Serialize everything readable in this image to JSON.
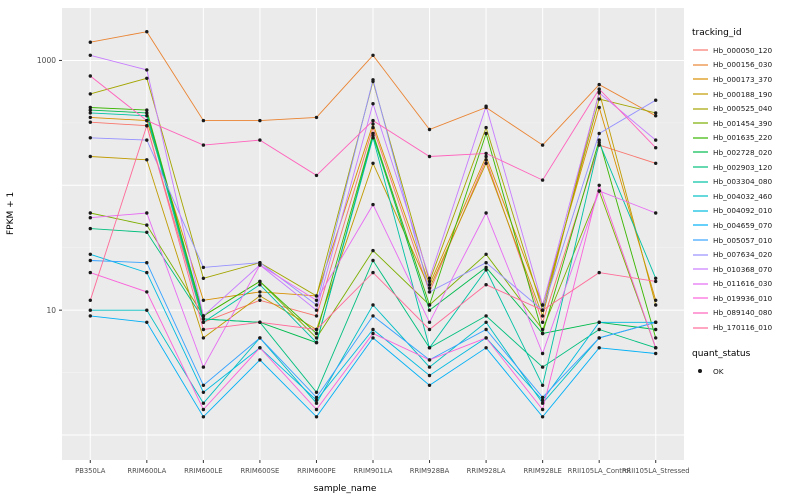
{
  "labels": {
    "xlabel": "sample_name",
    "ylabel": "FPKM + 1",
    "legend_title": "tracking_id",
    "quant_legend_title": "quant_status",
    "quant_legend_item": "OK"
  },
  "style": {
    "panel_bg": "#EBEBEB",
    "grid_major": "#FFFFFF",
    "grid_minor": "#F5F5F5",
    "point_color": "#1a1a1a",
    "axis_text": "#4d4d4d"
  },
  "chart_data": {
    "type": "line",
    "yscale": "log10",
    "grid": true,
    "legend_position": "right",
    "xlabel": "sample_name",
    "ylabel": "FPKM + 1",
    "ylim": [
      0.66,
      2500
    ],
    "y_ticks": [
      {
        "label": "10",
        "value": 10
      },
      {
        "label": "1000",
        "value": 1000
      }
    ],
    "x": [
      "PB350LA",
      "RRIM600LA",
      "RRIM600LE",
      "RRIM600SE",
      "RRIM600PE",
      "RRIM901LA",
      "RRIM928BA",
      "RRIM928LA",
      "RRIM928LE",
      "RRII105LA_Control",
      "RRII105LA_Stressed"
    ],
    "quant_status": "OK",
    "series": [
      {
        "name": "Hb_000050_120",
        "color": "#F8766D",
        "values": [
          320,
          300,
          8,
          12,
          9,
          290,
          14,
          160,
          8,
          210,
          150
        ]
      },
      {
        "name": "Hb_000156_030",
        "color": "#EA8331",
        "values": [
          1400,
          1700,
          330,
          330,
          350,
          1100,
          280,
          420,
          210,
          640,
          360
        ]
      },
      {
        "name": "Hb_000173_370",
        "color": "#D89000",
        "values": [
          350,
          330,
          12,
          14,
          13,
          310,
          16,
          170,
          11,
          420,
          12
        ]
      },
      {
        "name": "Hb_000188_190",
        "color": "#C09B00",
        "values": [
          170,
          160,
          6,
          13,
          7,
          150,
          15,
          150,
          9,
          560,
          11
        ]
      },
      {
        "name": "Hb_000525_040",
        "color": "#A3A500",
        "values": [
          540,
          720,
          18,
          24,
          13,
          680,
          17,
          290,
          10,
          490,
          380
        ]
      },
      {
        "name": "Hb_001454_390",
        "color": "#7CAE00",
        "values": [
          60,
          48,
          9,
          17,
          6,
          30,
          11,
          28,
          7,
          90,
          5
        ]
      },
      {
        "name": "Hb_001635_220",
        "color": "#39B600",
        "values": [
          420,
          400,
          9,
          17,
          6.5,
          260,
          11,
          260,
          6.5,
          230,
          6
        ]
      },
      {
        "name": "Hb_002728_020",
        "color": "#00BB4E",
        "values": [
          400,
          380,
          8.5,
          8,
          5.5,
          250,
          10,
          22,
          6.5,
          8,
          7
        ]
      },
      {
        "name": "Hb_002903_120",
        "color": "#00BF7D",
        "values": [
          45,
          42,
          8.5,
          8,
          2.2,
          25,
          5,
          9,
          3.5,
          7,
          5
        ]
      },
      {
        "name": "Hb_003304_080",
        "color": "#00C1A3",
        "values": [
          380,
          360,
          8,
          16,
          5.5,
          240,
          5,
          21,
          2.5,
          220,
          18
        ]
      },
      {
        "name": "Hb_004032_460",
        "color": "#00BFC4",
        "values": [
          10,
          10,
          1.8,
          6,
          1.8,
          11,
          3.5,
          8,
          1.8,
          6,
          8
        ]
      },
      {
        "name": "Hb_004092_010",
        "color": "#00BAE0",
        "values": [
          28,
          20,
          2.2,
          5,
          1.9,
          7,
          3,
          6,
          1.9,
          8,
          8
        ]
      },
      {
        "name": "Hb_004659_070",
        "color": "#00B0F6",
        "values": [
          9,
          8,
          1.4,
          4,
          1.4,
          6,
          2.5,
          5,
          1.4,
          5,
          4.5
        ]
      },
      {
        "name": "Hb_005057_010",
        "color": "#35A2FF",
        "values": [
          25,
          24,
          2.5,
          6,
          2,
          9,
          4,
          7,
          2,
          6,
          8
        ]
      },
      {
        "name": "Hb_007634_020",
        "color": "#9590FF",
        "values": [
          240,
          230,
          22,
          24,
          11,
          700,
          14,
          24,
          10,
          260,
          480
        ]
      },
      {
        "name": "Hb_010368_070",
        "color": "#C77CFF",
        "values": [
          1100,
          840,
          9,
          23,
          10,
          450,
          18,
          430,
          11,
          550,
          230
        ]
      },
      {
        "name": "Hb_011616_030",
        "color": "#E76BF3",
        "values": [
          55,
          60,
          3.5,
          23,
          12,
          70,
          8,
          60,
          4.5,
          90,
          60
        ]
      },
      {
        "name": "Hb_019936_010",
        "color": "#FA62DB",
        "values": [
          20,
          14,
          1.6,
          5,
          1.6,
          6.5,
          4,
          6,
          1.6,
          100,
          5
        ]
      },
      {
        "name": "Hb_089140_080",
        "color": "#FF62BC",
        "values": [
          750,
          330,
          210,
          230,
          120,
          330,
          170,
          180,
          110,
          590,
          200
        ]
      },
      {
        "name": "Hb_170116_010",
        "color": "#FF6A98",
        "values": [
          12,
          300,
          7,
          8,
          7,
          20,
          7,
          16,
          10,
          20,
          17
        ]
      }
    ]
  }
}
